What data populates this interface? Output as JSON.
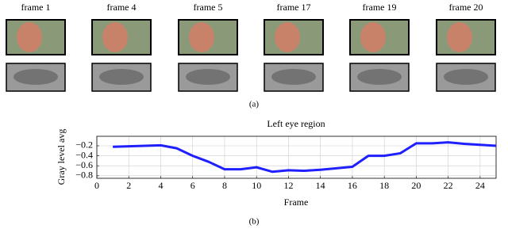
{
  "panel_a": {
    "frames": [
      "frame 1",
      "frame 4",
      "frame 5",
      "frame 17",
      "frame 19",
      "frame 20"
    ],
    "caption": "(a)"
  },
  "chart_data": {
    "type": "line",
    "title": "Left eye region",
    "x_label": "Frame",
    "y_label": "Gray level avg",
    "x": [
      1,
      2,
      3,
      4,
      5,
      6,
      7,
      8,
      9,
      10,
      11,
      12,
      13,
      14,
      15,
      16,
      17,
      18,
      19,
      20,
      21,
      22,
      23,
      24,
      25
    ],
    "series": [
      {
        "name": "Left eye region",
        "color": "#1f1fff",
        "values": [
          -0.22,
          -0.21,
          -0.2,
          -0.19,
          -0.25,
          -0.4,
          -0.52,
          -0.67,
          -0.67,
          -0.63,
          -0.72,
          -0.69,
          -0.7,
          -0.68,
          -0.65,
          -0.62,
          -0.4,
          -0.4,
          -0.35,
          -0.15,
          -0.15,
          -0.13,
          -0.16,
          -0.18,
          -0.2
        ]
      }
    ],
    "xlim": [
      0,
      25
    ],
    "xticks": [
      0,
      2,
      4,
      6,
      8,
      10,
      12,
      14,
      16,
      18,
      20,
      22,
      24
    ],
    "ylim": [
      -0.85,
      -0.01
    ],
    "yticks": [
      {
        "value": -0.2,
        "label": "−0.2"
      },
      {
        "value": -0.4,
        "label": "−0.4"
      },
      {
        "value": -0.6,
        "label": "−0.6"
      },
      {
        "value": -0.8,
        "label": "−0.8"
      }
    ],
    "grid": true
  },
  "panel_b": {
    "caption": "(b)"
  }
}
